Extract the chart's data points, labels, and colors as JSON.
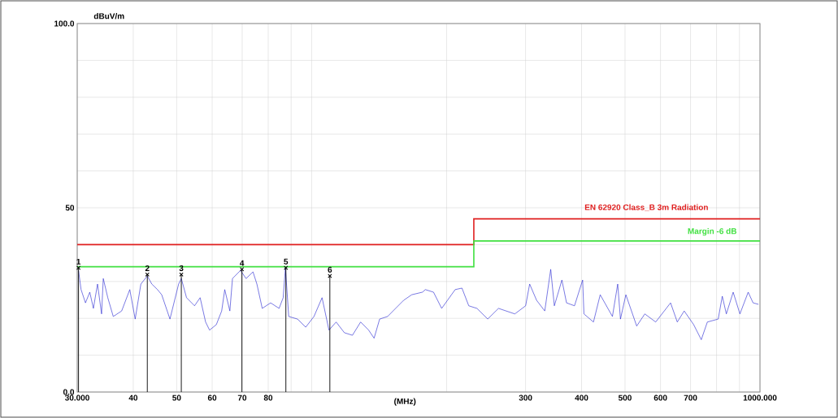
{
  "chart_data": {
    "type": "line",
    "xlabel": "(MHz)",
    "ylabel": "dBuV/m",
    "log": "x",
    "grid": true,
    "xlim": [
      30,
      1000
    ],
    "ylim": [
      0,
      100
    ],
    "xticks": [
      {
        "value": 30,
        "label": "30.000"
      },
      40,
      50,
      60,
      70,
      80,
      {
        "value": 90,
        "label": null
      },
      {
        "value": 100,
        "label": null
      },
      {
        "value": 200,
        "label": null
      },
      300,
      400,
      500,
      600,
      700,
      {
        "value": 800,
        "label": null
      },
      {
        "value": 900,
        "label": null
      },
      {
        "value": 1000,
        "label": "1000.000"
      }
    ],
    "yticks": [
      {
        "value": 0,
        "label": "0.0"
      },
      {
        "value": 10,
        "label": null
      },
      {
        "value": 20,
        "label": null
      },
      {
        "value": 30,
        "label": null
      },
      {
        "value": 40,
        "label": null
      },
      50,
      {
        "value": 60,
        "label": null
      },
      {
        "value": 70,
        "label": null
      },
      {
        "value": 80,
        "label": null
      },
      {
        "value": 90,
        "label": null
      },
      {
        "value": 100,
        "label": "100.0"
      }
    ],
    "series": [
      {
        "color": "#2020d0",
        "x": [
          30.2,
          30.6,
          31.3,
          32.0,
          32.6,
          33.3,
          34.0,
          34.3,
          35.1,
          36.1,
          37.7,
          39.3,
          40.4,
          41.6,
          43.0,
          44.0,
          45.3,
          46.3,
          48.3,
          50.5,
          51.2,
          52.6,
          54.8,
          56.4,
          58.0,
          59.2,
          61.3,
          63.0,
          64.0,
          65.7,
          66.6,
          69.4,
          71.4,
          74.0,
          75.5,
          77.6,
          81.0,
          84.6,
          86.4,
          87.4,
          88.9,
          93.0,
          97.0,
          101.2,
          105.5,
          109.3,
          113.4,
          118.3,
          123.3,
          128.6,
          134.0,
          137.8,
          141.8,
          147.7,
          153.9,
          160.4,
          167.2,
          176.7,
          179.3,
          187.0,
          195.0,
          209.0,
          216.4,
          224.1,
          233.7,
          247.0,
          261.1,
          283.9,
          300.1,
          306.4,
          317.5,
          331.1,
          341.4,
          347.8,
          355.1,
          361.6,
          370.3,
          385.8,
          402.2,
          404.9,
          425.2,
          440.2,
          468.7,
          481.6,
          488.4,
          502.2,
          530.9,
          553.5,
          585.3,
          631.8,
          654.0,
          677.6,
          711.3,
          739.7,
          763.3,
          806.9,
          824.0,
          841.4,
          871.4,
          902.1,
          941.2,
          965.1,
          992.1
        ],
        "values": [
          33.0,
          27.8,
          24.2,
          27.1,
          22.7,
          29.3,
          21.2,
          30.8,
          25.6,
          20.5,
          22.0,
          27.8,
          19.8,
          29.3,
          31.5,
          29.3,
          27.8,
          26.4,
          19.8,
          29.3,
          30.8,
          25.6,
          23.4,
          25.6,
          19.0,
          16.8,
          18.3,
          22.0,
          27.8,
          22.0,
          30.8,
          33.0,
          30.8,
          32.6,
          29.3,
          22.7,
          24.2,
          22.7,
          25.6,
          33.7,
          20.5,
          19.8,
          17.6,
          20.5,
          25.6,
          16.8,
          19.0,
          16.1,
          15.4,
          19.0,
          16.8,
          14.6,
          19.8,
          20.5,
          22.7,
          24.9,
          26.4,
          27.1,
          27.8,
          27.1,
          22.7,
          27.8,
          28.2,
          23.4,
          22.7,
          19.8,
          22.7,
          21.2,
          23.4,
          29.3,
          24.9,
          22.0,
          33.3,
          23.4,
          27.1,
          30.4,
          24.2,
          23.4,
          30.4,
          21.2,
          19.0,
          26.4,
          20.5,
          29.3,
          19.8,
          26.4,
          17.9,
          21.2,
          19.0,
          24.2,
          19.0,
          22.0,
          18.3,
          14.2,
          19.0,
          19.8,
          26.0,
          21.2,
          27.1,
          21.2,
          27.1,
          24.2,
          23.8
        ]
      },
      {
        "type": "step",
        "name": "EN 62920 Class_B 3m Radiation",
        "color": "#e02020",
        "x": [
          30,
          230,
          1000
        ],
        "values": [
          40,
          47,
          47
        ]
      },
      {
        "type": "step",
        "name": "Margin -6 dB",
        "color": "#40e040",
        "x": [
          30,
          230,
          1000
        ],
        "values": [
          34,
          41,
          41
        ]
      },
      {
        "type": "lollipop",
        "color": "#000000",
        "marker": "cross",
        "x": [
          30.2,
          43.0,
          51.2,
          69.9,
          87.6,
          109.8
        ],
        "values": [
          33.7,
          31.9,
          31.9,
          33.3,
          33.7,
          31.5
        ]
      }
    ],
    "annotations": [
      {
        "text": "1",
        "x": 30.2,
        "y": 33.7
      },
      {
        "text": "2",
        "x": 43.0,
        "y": 31.9
      },
      {
        "text": "3",
        "x": 51.2,
        "y": 31.9
      },
      {
        "text": "4",
        "x": 69.9,
        "y": 33.3
      },
      {
        "text": "5",
        "x": 87.6,
        "y": 33.7
      },
      {
        "text": "6",
        "x": 109.8,
        "y": 31.5
      }
    ]
  }
}
